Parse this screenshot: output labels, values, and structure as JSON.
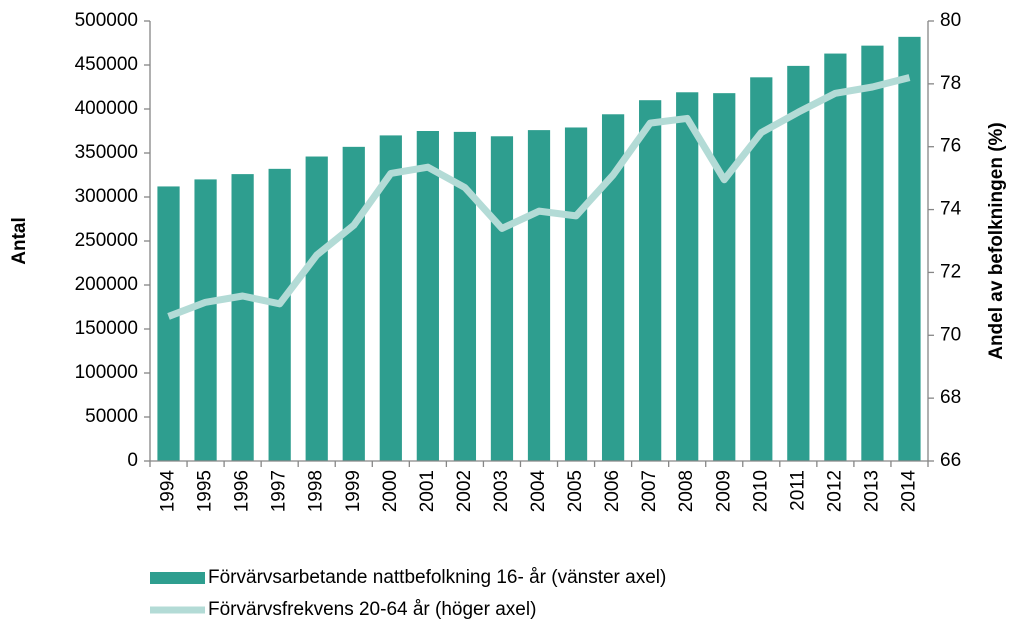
{
  "chart_data": {
    "type": "bar_line",
    "categories": [
      "1994",
      "1995",
      "1996",
      "1997",
      "1998",
      "1999",
      "2000",
      "2001",
      "2002",
      "2003",
      "2004",
      "2005",
      "2006",
      "2007",
      "2008",
      "2009",
      "2010",
      "2011",
      "2012",
      "2013",
      "2014"
    ],
    "series": [
      {
        "name": "Förvärvsarbetande nattbefolkning 16- år (vänster axel)",
        "type": "bar",
        "color": "#2e9e8f",
        "values": [
          312000,
          320000,
          326000,
          332000,
          346000,
          357000,
          370000,
          375000,
          374000,
          369000,
          376000,
          379000,
          394000,
          410000,
          419000,
          418000,
          436000,
          449000,
          463000,
          472000,
          482000
        ]
      },
      {
        "name": "Förvärvsfrekvens 20-64 år (höger axel)",
        "type": "line",
        "axis": "y2",
        "color": "#b3dbd6",
        "values": [
          70.6,
          71.05,
          71.25,
          71.0,
          72.55,
          73.5,
          75.15,
          75.35,
          74.7,
          73.4,
          73.95,
          73.8,
          75.1,
          76.75,
          76.9,
          74.95,
          76.45,
          77.1,
          77.7,
          77.9,
          78.2
        ]
      }
    ],
    "ylabel": "Antal",
    "y2label": "Andel av befolkningen (%)",
    "ylim": [
      0,
      500000
    ],
    "yticks": [
      0,
      50000,
      100000,
      150000,
      200000,
      250000,
      300000,
      350000,
      400000,
      450000,
      500000
    ],
    "y2lim": [
      66,
      80
    ],
    "y2ticks": [
      66,
      68,
      70,
      72,
      74,
      76,
      78,
      80
    ],
    "grid": false,
    "legend": "bottom"
  }
}
